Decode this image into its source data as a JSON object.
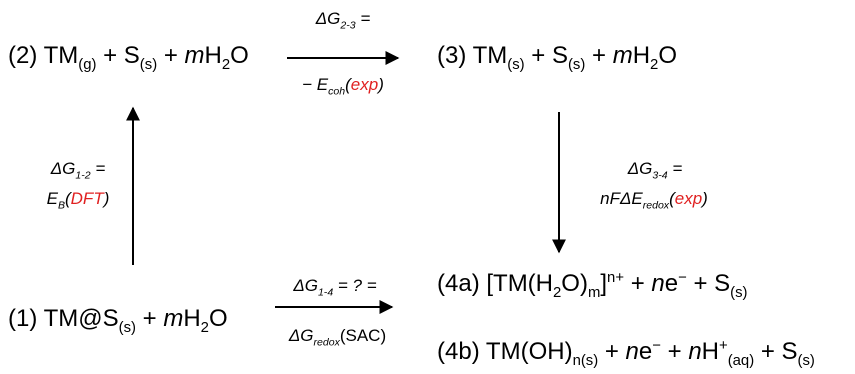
{
  "states": {
    "s2": {
      "num": "(2)",
      "a": "TM",
      "a_sub": "(g)",
      "plus1": "+",
      "b": "S",
      "b_sub": "(s)",
      "plus2": "+",
      "m": "m",
      "water": "H",
      "water_sub": "2",
      "water_end": "O"
    },
    "s3": {
      "num": "(3)",
      "a": "TM",
      "a_sub": "(s)",
      "plus1": "+",
      "b": "S",
      "b_sub": "(s)",
      "plus2": "+",
      "m": "m",
      "water": "H",
      "water_sub": "2",
      "water_end": "O"
    },
    "s1": {
      "num": "(1)",
      "a": "TM@S",
      "a_sub": "(s)",
      "plus1": "+",
      "m": "m",
      "water": "H",
      "water_sub": "2",
      "water_end": "O"
    },
    "s4a": {
      "num": "(4a)",
      "a": "[TM(H",
      "a_sub": "2",
      "a2": "O)",
      "a2_sub": "m",
      "a3": "]",
      "a3_sup": "n+",
      "plus1": "+",
      "n": "n",
      "e": "e",
      "e_sup": "−",
      "plus2": "+",
      "b": "S",
      "b_sub": "(s)"
    },
    "s4b": {
      "num": "(4b)",
      "a": "TM(OH)",
      "a_sub": "n(s)",
      "plus1": "+",
      "n": "n",
      "e": "e",
      "e_sup": "−",
      "plus2": "+",
      "n2": "n",
      "h": "H",
      "h_sup": "+",
      "h_sub": "(aq)",
      "plus3": "+",
      "b": "S",
      "b_sub": "(s)"
    }
  },
  "labels": {
    "dg23": {
      "top_sym": "ΔG",
      "top_sub": "2-3",
      "top_eq": " =",
      "bot_pre": "− E",
      "bot_sub": "coh",
      "bot_open": "(",
      "bot_red": "exp",
      "bot_close": ")"
    },
    "dg12": {
      "top_sym": "ΔG",
      "top_sub": "1-2",
      "top_eq": " =",
      "bot_pre": "E",
      "bot_sub": "B",
      "bot_open": "(",
      "bot_red": "DFT",
      "bot_close": ")"
    },
    "dg34": {
      "top_sym": "ΔG",
      "top_sub": "3-4",
      "top_eq": " =",
      "bot_pre": "nFΔE",
      "bot_sub": "redox",
      "bot_open": "(",
      "bot_red": "exp",
      "bot_close": ")"
    },
    "dg14": {
      "top_sym": "ΔG",
      "top_sub": "1-4",
      "top_eq": " = ? =",
      "bot_pre": "ΔG",
      "bot_sub": "redox",
      "bot_text": "(SAC)"
    }
  },
  "colors": {
    "accent_red": "#e02020",
    "ink": "#000000"
  }
}
